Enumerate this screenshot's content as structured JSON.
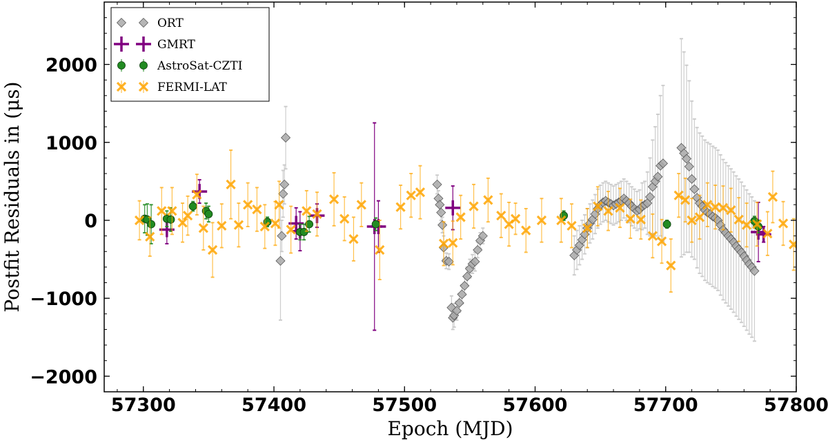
{
  "chart_data": {
    "type": "scatter",
    "title": "",
    "xlabel": "Epoch (MJD)",
    "ylabel": "Postfit Residuals in (μs)",
    "xlim": [
      57270,
      57800
    ],
    "ylim": [
      -2200,
      2800
    ],
    "xticks": [
      57300,
      57400,
      57500,
      57600,
      57700,
      57800
    ],
    "yticks": [
      -2000,
      -1000,
      0,
      1000,
      2000
    ],
    "xtick_labels": [
      "57300",
      "57400",
      "57500",
      "57600",
      "57700",
      "57800"
    ],
    "ytick_labels": [
      "−2000",
      "−1000",
      "0",
      "1000",
      "2000"
    ],
    "legend_position": "top-left",
    "series": [
      {
        "name": "ORT",
        "marker": "diamond",
        "color": "#a9a9a9",
        "points": [
          [
            57405,
            -520,
            760
          ],
          [
            57406,
            -200,
            200
          ],
          [
            57407,
            340,
            300
          ],
          [
            57408,
            460,
            250
          ],
          [
            57409,
            1060,
            400
          ],
          [
            57525,
            460,
            120
          ],
          [
            57526,
            280,
            100
          ],
          [
            57527,
            200,
            100
          ],
          [
            57528,
            100,
            100
          ],
          [
            57529,
            -60,
            100
          ],
          [
            57530,
            -350,
            150
          ],
          [
            57532,
            -520,
            100
          ],
          [
            57534,
            -530,
            100
          ],
          [
            57536,
            -1120,
            150
          ],
          [
            57537,
            -1250,
            150
          ],
          [
            57538,
            -1220,
            150
          ],
          [
            57540,
            -1160,
            120
          ],
          [
            57542,
            -1060,
            120
          ],
          [
            57544,
            -950,
            120
          ],
          [
            57546,
            -840,
            120
          ],
          [
            57548,
            -720,
            120
          ],
          [
            57550,
            -620,
            120
          ],
          [
            57552,
            -560,
            120
          ],
          [
            57554,
            -530,
            120
          ],
          [
            57556,
            -380,
            100
          ],
          [
            57558,
            -260,
            100
          ],
          [
            57560,
            -200,
            100
          ],
          [
            57630,
            -450,
            250
          ],
          [
            57632,
            -380,
            250
          ],
          [
            57634,
            -320,
            250
          ],
          [
            57636,
            -250,
            250
          ],
          [
            57638,
            -180,
            250
          ],
          [
            57640,
            -100,
            250
          ],
          [
            57642,
            -40,
            250
          ],
          [
            57644,
            10,
            250
          ],
          [
            57646,
            80,
            250
          ],
          [
            57648,
            150,
            250
          ],
          [
            57650,
            200,
            250
          ],
          [
            57652,
            230,
            250
          ],
          [
            57654,
            250,
            250
          ],
          [
            57656,
            230,
            250
          ],
          [
            57658,
            210,
            250
          ],
          [
            57660,
            190,
            250
          ],
          [
            57662,
            210,
            250
          ],
          [
            57664,
            230,
            250
          ],
          [
            57666,
            250,
            250
          ],
          [
            57668,
            280,
            250
          ],
          [
            57670,
            250,
            250
          ],
          [
            57672,
            220,
            250
          ],
          [
            57674,
            180,
            250
          ],
          [
            57676,
            150,
            250
          ],
          [
            57678,
            120,
            250
          ],
          [
            57680,
            140,
            250
          ],
          [
            57682,
            180,
            300
          ],
          [
            57684,
            200,
            300
          ],
          [
            57686,
            220,
            400
          ],
          [
            57688,
            300,
            500
          ],
          [
            57690,
            430,
            600
          ],
          [
            57692,
            500,
            700
          ],
          [
            57694,
            560,
            800
          ],
          [
            57696,
            700,
            900
          ],
          [
            57698,
            730,
            1000
          ],
          [
            57712,
            930,
            1400
          ],
          [
            57714,
            860,
            1300
          ],
          [
            57716,
            790,
            1200
          ],
          [
            57718,
            690,
            1100
          ],
          [
            57720,
            530,
            1000
          ],
          [
            57722,
            400,
            900
          ],
          [
            57724,
            290,
            900
          ],
          [
            57726,
            220,
            900
          ],
          [
            57728,
            180,
            900
          ],
          [
            57730,
            130,
            900
          ],
          [
            57732,
            100,
            900
          ],
          [
            57734,
            80,
            900
          ],
          [
            57736,
            50,
            900
          ],
          [
            57738,
            30,
            900
          ],
          [
            57740,
            0,
            900
          ],
          [
            57742,
            -60,
            900
          ],
          [
            57744,
            -120,
            900
          ],
          [
            57746,
            -160,
            900
          ],
          [
            57748,
            -200,
            900
          ],
          [
            57750,
            -240,
            900
          ],
          [
            57752,
            -280,
            900
          ],
          [
            57754,
            -330,
            900
          ],
          [
            57756,
            -370,
            900
          ],
          [
            57758,
            -410,
            900
          ],
          [
            57760,
            -460,
            900
          ],
          [
            57762,
            -510,
            900
          ],
          [
            57764,
            -560,
            900
          ],
          [
            57766,
            -600,
            900
          ],
          [
            57768,
            -650,
            900
          ]
        ]
      },
      {
        "name": "GMRT",
        "marker": "plus",
        "color": "#800080",
        "points": [
          [
            57318,
            -120,
            180
          ],
          [
            57343,
            370,
            150
          ],
          [
            57417,
            -40,
            200
          ],
          [
            57420,
            -140,
            250
          ],
          [
            57433,
            60,
            150
          ],
          [
            57477,
            -80,
            1330
          ],
          [
            57480,
            -80,
            330
          ],
          [
            57537,
            160,
            280
          ],
          [
            57771,
            -150,
            380
          ],
          [
            57775,
            -180,
            100
          ]
        ]
      },
      {
        "name": "AstroSat-CZTI",
        "marker": "circle",
        "color": "#228b22",
        "points": [
          [
            57301,
            20,
            180
          ],
          [
            57303,
            10,
            200
          ],
          [
            57306,
            -50,
            250
          ],
          [
            57318,
            20,
            100
          ],
          [
            57321,
            10,
            150
          ],
          [
            57338,
            180,
            60
          ],
          [
            57348,
            120,
            100
          ],
          [
            57350,
            80,
            100
          ],
          [
            57395,
            -20,
            60
          ],
          [
            57420,
            -150,
            100
          ],
          [
            57423,
            -150,
            100
          ],
          [
            57427,
            -50,
            100
          ],
          [
            57478,
            -50,
            80
          ],
          [
            57622,
            60,
            60
          ],
          [
            57701,
            -50,
            50
          ],
          [
            57768,
            -10,
            60
          ],
          [
            57771,
            -80,
            80
          ]
        ]
      },
      {
        "name": "FERMI-LAT",
        "marker": "x",
        "color": "#ffa500",
        "points": [
          [
            57297,
            0,
            250
          ],
          [
            57305,
            -210,
            250
          ],
          [
            57314,
            120,
            300
          ],
          [
            57322,
            120,
            300
          ],
          [
            57330,
            -30,
            250
          ],
          [
            57334,
            60,
            250
          ],
          [
            57341,
            330,
            260
          ],
          [
            57346,
            -100,
            280
          ],
          [
            57353,
            -380,
            350
          ],
          [
            57360,
            -70,
            280
          ],
          [
            57367,
            460,
            440
          ],
          [
            57373,
            -60,
            280
          ],
          [
            57380,
            200,
            280
          ],
          [
            57387,
            140,
            280
          ],
          [
            57393,
            -80,
            280
          ],
          [
            57401,
            -40,
            280
          ],
          [
            57404,
            200,
            300
          ],
          [
            57413,
            -120,
            300
          ],
          [
            57425,
            120,
            260
          ],
          [
            57433,
            80,
            280
          ],
          [
            57446,
            270,
            340
          ],
          [
            57454,
            20,
            280
          ],
          [
            57461,
            -240,
            280
          ],
          [
            57467,
            200,
            280
          ],
          [
            57481,
            -380,
            380
          ],
          [
            57497,
            170,
            280
          ],
          [
            57505,
            320,
            280
          ],
          [
            57512,
            360,
            340
          ],
          [
            57530,
            -300,
            280
          ],
          [
            57537,
            -290,
            280
          ],
          [
            57543,
            40,
            280
          ],
          [
            57553,
            180,
            280
          ],
          [
            57564,
            260,
            280
          ],
          [
            57574,
            60,
            280
          ],
          [
            57580,
            -50,
            280
          ],
          [
            57585,
            20,
            200
          ],
          [
            57593,
            -130,
            280
          ],
          [
            57605,
            0,
            280
          ],
          [
            57620,
            0,
            280
          ],
          [
            57628,
            -70,
            280
          ],
          [
            57640,
            -100,
            250
          ],
          [
            57648,
            180,
            250
          ],
          [
            57656,
            120,
            250
          ],
          [
            57665,
            160,
            250
          ],
          [
            57673,
            20,
            250
          ],
          [
            57681,
            10,
            250
          ],
          [
            57690,
            -200,
            280
          ],
          [
            57697,
            -270,
            280
          ],
          [
            57704,
            -580,
            340
          ],
          [
            57710,
            320,
            280
          ],
          [
            57715,
            260,
            280
          ],
          [
            57720,
            0,
            280
          ],
          [
            57726,
            40,
            280
          ],
          [
            57732,
            200,
            280
          ],
          [
            57738,
            170,
            280
          ],
          [
            57744,
            160,
            280
          ],
          [
            57750,
            130,
            280
          ],
          [
            57756,
            10,
            280
          ],
          [
            57762,
            -60,
            280
          ],
          [
            57770,
            -50,
            280
          ],
          [
            57778,
            -170,
            280
          ],
          [
            57782,
            300,
            330
          ],
          [
            57790,
            -40,
            280
          ],
          [
            57798,
            -310,
            330
          ]
        ]
      }
    ]
  }
}
